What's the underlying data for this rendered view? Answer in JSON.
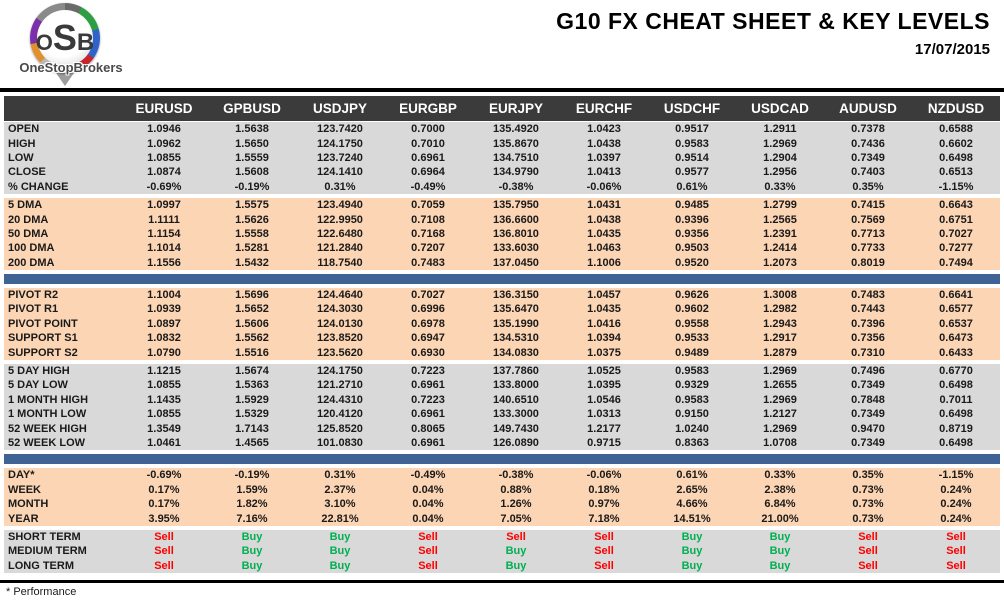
{
  "header": {
    "title": "G10 FX CHEAT SHEET & KEY LEVELS",
    "date": "17/07/2015",
    "logo": {
      "monogram_o": "O",
      "monogram_s": "S",
      "monogram_b": "B",
      "brand": "OneStopBrokers"
    }
  },
  "footer": {
    "note": "* Performance"
  },
  "colors": {
    "header_bg": "#3b3b3b",
    "block_gray": "#d9d9d9",
    "block_peach": "#fcd5b4",
    "divider_blue": "#3e6394",
    "buy_green": "#00b050",
    "sell_red": "#ff0000",
    "pivot_resistance_green": "#00b050",
    "pivot_point_navy": "#17375e",
    "support_red": "#ff0000"
  },
  "table": {
    "columns": [
      "EURUSD",
      "GPBUSD",
      "USDJPY",
      "EURGBP",
      "EURJPY",
      "EURCHF",
      "USDCHF",
      "USDCAD",
      "AUDUSD",
      "NZDUSD"
    ],
    "sections": [
      {
        "bg": "gray",
        "rows": [
          {
            "label": "OPEN",
            "values": [
              "1.0946",
              "1.5638",
              "123.7420",
              "0.7000",
              "135.4920",
              "1.0423",
              "0.9517",
              "1.2911",
              "0.7378",
              "0.6588"
            ]
          },
          {
            "label": "HIGH",
            "values": [
              "1.0962",
              "1.5650",
              "124.1750",
              "0.7010",
              "135.8670",
              "1.0438",
              "0.9583",
              "1.2969",
              "0.7436",
              "0.6602"
            ]
          },
          {
            "label": "LOW",
            "values": [
              "1.0855",
              "1.5559",
              "123.7240",
              "0.6961",
              "134.7510",
              "1.0397",
              "0.9514",
              "1.2904",
              "0.7349",
              "0.6498"
            ]
          },
          {
            "label": "CLOSE",
            "values": [
              "1.0874",
              "1.5608",
              "124.1410",
              "0.6964",
              "134.9790",
              "1.0413",
              "0.9577",
              "1.2956",
              "0.7403",
              "0.6513"
            ]
          },
          {
            "label": "% CHANGE",
            "values": [
              "-0.69%",
              "-0.19%",
              "0.31%",
              "-0.49%",
              "-0.38%",
              "-0.06%",
              "0.61%",
              "0.33%",
              "0.35%",
              "-1.15%"
            ]
          }
        ]
      },
      {
        "bg": "peach",
        "rows": [
          {
            "label": "5 DMA",
            "values": [
              "1.0997",
              "1.5575",
              "123.4940",
              "0.7059",
              "135.7950",
              "1.0431",
              "0.9485",
              "1.2799",
              "0.7415",
              "0.6643"
            ]
          },
          {
            "label": "20 DMA",
            "values": [
              "1.1111",
              "1.5626",
              "122.9950",
              "0.7108",
              "136.6600",
              "1.0438",
              "0.9396",
              "1.2565",
              "0.7569",
              "0.6751"
            ]
          },
          {
            "label": "50 DMA",
            "values": [
              "1.1154",
              "1.5558",
              "122.6480",
              "0.7168",
              "136.8010",
              "1.0435",
              "0.9356",
              "1.2391",
              "0.7713",
              "0.7027"
            ]
          },
          {
            "label": "100 DMA",
            "values": [
              "1.1014",
              "1.5281",
              "121.2840",
              "0.7207",
              "133.6030",
              "1.0463",
              "0.9503",
              "1.2414",
              "0.7733",
              "0.7277"
            ]
          },
          {
            "label": "200 DMA",
            "values": [
              "1.1556",
              "1.5432",
              "118.7540",
              "0.7483",
              "137.0450",
              "1.1006",
              "0.9520",
              "1.2073",
              "0.8019",
              "0.7494"
            ]
          }
        ]
      },
      {
        "type": "divider"
      },
      {
        "bg": "peach",
        "rows": [
          {
            "label": "PIVOT R2",
            "label_color": "green",
            "values": [
              "1.1004",
              "1.5696",
              "124.4640",
              "0.7027",
              "136.3150",
              "1.0457",
              "0.9626",
              "1.3008",
              "0.7483",
              "0.6641"
            ]
          },
          {
            "label": "PIVOT R1",
            "label_color": "green",
            "values": [
              "1.0939",
              "1.5652",
              "124.3030",
              "0.6996",
              "135.6470",
              "1.0435",
              "0.9602",
              "1.2982",
              "0.7443",
              "0.6577"
            ]
          },
          {
            "label": "PIVOT POINT",
            "label_color": "navy",
            "values": [
              "1.0897",
              "1.5606",
              "124.0130",
              "0.6978",
              "135.1990",
              "1.0416",
              "0.9558",
              "1.2943",
              "0.7396",
              "0.6537"
            ]
          },
          {
            "label": "SUPPORT S1",
            "label_color": "red",
            "values": [
              "1.0832",
              "1.5562",
              "123.8520",
              "0.6947",
              "134.5310",
              "1.0394",
              "0.9533",
              "1.2917",
              "0.7356",
              "0.6473"
            ]
          },
          {
            "label": "SUPPORT S2",
            "label_color": "red",
            "values": [
              "1.0790",
              "1.5516",
              "123.5620",
              "0.6930",
              "134.0830",
              "1.0375",
              "0.9489",
              "1.2879",
              "0.7310",
              "0.6433"
            ]
          }
        ]
      },
      {
        "bg": "gray",
        "rows": [
          {
            "label": "5 DAY HIGH",
            "values": [
              "1.1215",
              "1.5674",
              "124.1750",
              "0.7223",
              "137.7860",
              "1.0525",
              "0.9583",
              "1.2969",
              "0.7496",
              "0.6770"
            ]
          },
          {
            "label": "5 DAY LOW",
            "values": [
              "1.0855",
              "1.5363",
              "121.2710",
              "0.6961",
              "133.8000",
              "1.0395",
              "0.9329",
              "1.2655",
              "0.7349",
              "0.6498"
            ]
          },
          {
            "label": "1 MONTH HIGH",
            "values": [
              "1.1435",
              "1.5929",
              "124.4310",
              "0.7223",
              "140.6510",
              "1.0546",
              "0.9583",
              "1.2969",
              "0.7848",
              "0.7011"
            ]
          },
          {
            "label": "1 MONTH LOW",
            "values": [
              "1.0855",
              "1.5329",
              "120.4120",
              "0.6961",
              "133.3000",
              "1.0313",
              "0.9150",
              "1.2127",
              "0.7349",
              "0.6498"
            ]
          },
          {
            "label": "52 WEEK HIGH",
            "values": [
              "1.3549",
              "1.7143",
              "125.8520",
              "0.8065",
              "149.7430",
              "1.2177",
              "1.0240",
              "1.2969",
              "0.9470",
              "0.8719"
            ]
          },
          {
            "label": "52 WEEK LOW",
            "values": [
              "1.0461",
              "1.4565",
              "101.0830",
              "0.6961",
              "126.0890",
              "0.9715",
              "0.8363",
              "1.0708",
              "0.7349",
              "0.6498"
            ]
          }
        ]
      },
      {
        "type": "divider"
      },
      {
        "bg": "peach",
        "rows": [
          {
            "label": "DAY*",
            "values": [
              "-0.69%",
              "-0.19%",
              "0.31%",
              "-0.49%",
              "-0.38%",
              "-0.06%",
              "0.61%",
              "0.33%",
              "0.35%",
              "-1.15%"
            ]
          },
          {
            "label": "WEEK",
            "values": [
              "0.17%",
              "1.59%",
              "2.37%",
              "0.04%",
              "0.88%",
              "0.18%",
              "2.65%",
              "2.38%",
              "0.73%",
              "0.24%"
            ]
          },
          {
            "label": "MONTH",
            "values": [
              "0.17%",
              "1.82%",
              "3.10%",
              "0.04%",
              "1.26%",
              "0.97%",
              "4.66%",
              "6.84%",
              "0.73%",
              "0.24%"
            ]
          },
          {
            "label": "YEAR",
            "values": [
              "3.95%",
              "7.16%",
              "22.81%",
              "0.04%",
              "7.05%",
              "7.18%",
              "14.51%",
              "21.00%",
              "0.73%",
              "0.24%"
            ]
          }
        ]
      },
      {
        "bg": "gray",
        "signals": true,
        "rows": [
          {
            "label": "SHORT TERM",
            "values": [
              "Sell",
              "Buy",
              "Buy",
              "Sell",
              "Sell",
              "Sell",
              "Buy",
              "Buy",
              "Sell",
              "Sell"
            ]
          },
          {
            "label": "MEDIUM TERM",
            "values": [
              "Sell",
              "Buy",
              "Buy",
              "Sell",
              "Buy",
              "Sell",
              "Buy",
              "Buy",
              "Sell",
              "Sell"
            ]
          },
          {
            "label": "LONG TERM",
            "values": [
              "Sell",
              "Buy",
              "Buy",
              "Sell",
              "Buy",
              "Sell",
              "Buy",
              "Buy",
              "Sell",
              "Sell"
            ]
          }
        ]
      }
    ]
  }
}
